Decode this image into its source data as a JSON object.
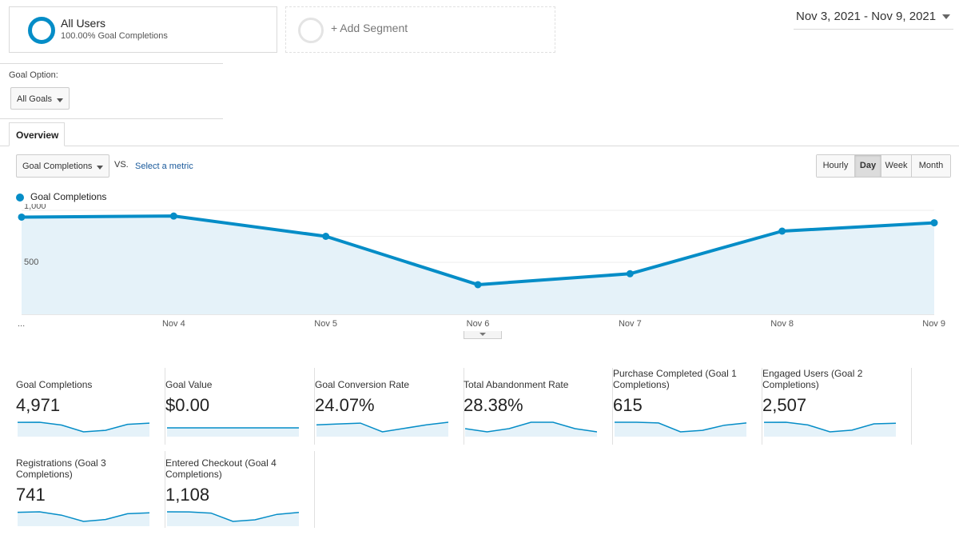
{
  "segments": {
    "all_users": {
      "title": "All Users",
      "subtitle": "100.00% Goal Completions"
    },
    "add_segment": {
      "label": "+ Add Segment"
    }
  },
  "date_range": {
    "label": "Nov 3, 2021 - Nov 9, 2021"
  },
  "goal_option": {
    "label": "Goal Option:",
    "selected": "All Goals"
  },
  "tabs": {
    "overview": "Overview"
  },
  "metric_select": {
    "selected": "Goal Completions",
    "vs": "VS.",
    "compare_link": "Select a metric"
  },
  "granularity": {
    "buttons": [
      "Hourly",
      "Day",
      "Week",
      "Month"
    ],
    "active": "Day"
  },
  "colors": {
    "accent": "#058dc7",
    "area_fill": "#e5f2f9",
    "active_button": "#dcdcdc"
  },
  "chart_data": {
    "type": "area",
    "series": [
      {
        "name": "Goal Completions",
        "values": [
          935,
          945,
          750,
          285,
          390,
          800,
          880
        ]
      }
    ],
    "x": [
      "...",
      "Nov 4",
      "Nov 5",
      "Nov 6",
      "Nov 7",
      "Nov 8",
      "Nov 9"
    ],
    "y_ticks": [
      "1,000",
      "500"
    ],
    "ylim": [
      0,
      1000
    ],
    "grid": true,
    "legend": "top-left"
  },
  "scorecards": [
    {
      "name": "Goal Completions",
      "value": "4,971",
      "spark": [
        935,
        945,
        750,
        285,
        390,
        800,
        880
      ]
    },
    {
      "name": "Goal Value",
      "value": "$0.00",
      "spark": [
        0,
        0,
        0,
        0,
        0,
        0,
        0
      ]
    },
    {
      "name": "Goal Conversion Rate",
      "value": "24.07%",
      "spark": [
        25,
        25.5,
        26,
        21,
        23,
        25,
        26.5
      ]
    },
    {
      "name": "Total Abandonment Rate",
      "value": "28.38%",
      "spark": [
        28,
        27.5,
        28,
        29,
        29,
        28,
        27.5
      ]
    },
    {
      "name": "Purchase Completed (Goal 1 Completions)",
      "value": "615",
      "spark": [
        120,
        120,
        115,
        55,
        65,
        100,
        115
      ]
    },
    {
      "name": "Engaged Users (Goal 2 Completions)",
      "value": "2,507",
      "spark": [
        470,
        475,
        380,
        140,
        200,
        420,
        440
      ]
    },
    {
      "name": "Registrations (Goal 3 Completions)",
      "value": "741",
      "spark": [
        140,
        145,
        110,
        45,
        65,
        125,
        135
      ]
    },
    {
      "name": "Entered Checkout (Goal 4 Completions)",
      "value": "1,108",
      "spark": [
        220,
        218,
        200,
        70,
        95,
        180,
        210
      ]
    }
  ]
}
